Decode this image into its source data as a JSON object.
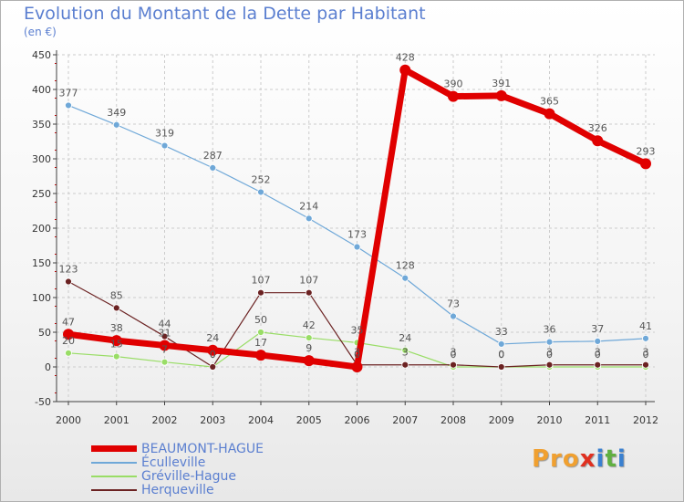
{
  "title": "Evolution du Montant de la Dette par Habitant",
  "subtitle": "(en €)",
  "logo": {
    "p": "Pro",
    "x": "x",
    "i": "i",
    "t": "t",
    "i2": "i"
  },
  "colors": {
    "axis": "#404040",
    "grid": "#cccccc",
    "label": "#555555"
  },
  "chart_data": {
    "type": "line",
    "title": "Evolution du Montant de la Dette par Habitant",
    "ylabel": "(en €)",
    "x": [
      "2000",
      "2001",
      "2002",
      "2003",
      "2004",
      "2005",
      "2006",
      "2007",
      "2008",
      "2009",
      "2010",
      "2011",
      "2012"
    ],
    "ylim": [
      -50,
      450
    ],
    "yticks": [
      "-50",
      "0",
      "50",
      "100",
      "150",
      "200",
      "250",
      "300",
      "350",
      "400",
      "450"
    ],
    "series": [
      {
        "name": "BEAUMONT-HAGUE",
        "color": "#e00000",
        "lw": 7,
        "r": 6,
        "values": [
          47,
          38,
          31,
          24,
          17,
          9,
          0,
          428,
          390,
          391,
          365,
          326,
          293
        ],
        "labels": [
          "47",
          "38",
          "31",
          "24",
          "17",
          "9",
          "0",
          "428",
          "390",
          "391",
          "365",
          "326",
          "293"
        ]
      },
      {
        "name": "Éculleville",
        "color": "#6fa8d8",
        "lw": 1.2,
        "r": 3.5,
        "values": [
          377,
          349,
          319,
          287,
          252,
          214,
          173,
          128,
          73,
          33,
          36,
          37,
          41
        ],
        "labels": [
          "377",
          "349",
          "319",
          "287",
          "252",
          "214",
          "173",
          "128",
          "73",
          "33",
          "36",
          "37",
          "41"
        ]
      },
      {
        "name": "Gréville-Hague",
        "color": "#99dd66",
        "lw": 1.2,
        "r": 3.5,
        "values": [
          20,
          15,
          7,
          0,
          50,
          42,
          35,
          24,
          0,
          0,
          0,
          0,
          0
        ],
        "labels": [
          "20",
          "15",
          "7",
          "0",
          "50",
          "42",
          "35",
          "24",
          "0",
          "0",
          "0",
          "0",
          "0"
        ]
      },
      {
        "name": "Herqueville",
        "color": "#6b2222",
        "lw": 1.2,
        "r": 3.5,
        "values": [
          123,
          85,
          44,
          0,
          107,
          107,
          3,
          3,
          3,
          0,
          3,
          3,
          3
        ],
        "labels": [
          "123",
          "85",
          "44",
          "0",
          "107",
          "107",
          "3",
          "3",
          "3",
          "0",
          "3",
          "3",
          "3"
        ]
      }
    ]
  }
}
